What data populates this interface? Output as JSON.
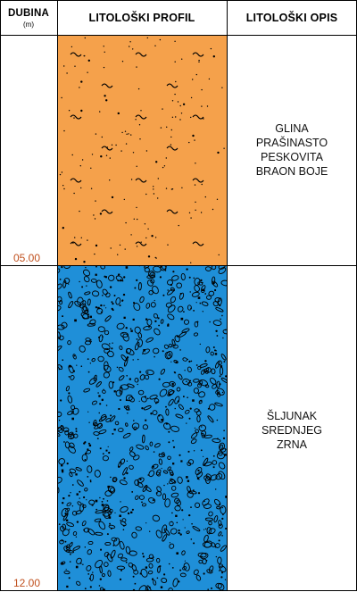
{
  "header": {
    "depth_title": "DUBINA",
    "depth_unit": "(m)",
    "profile_title": "LITOLOŠKI PROFIL",
    "description_title": "LITOLOŠKI OPIS"
  },
  "layers": [
    {
      "bottom_depth_label": "05.00",
      "description_lines": [
        "GLINA",
        "PRAŠINASTO",
        "PESKOVITA",
        "BRAON BOJE"
      ],
      "fill_color": "#f5a14b",
      "pattern": "silty-sandy-clay"
    },
    {
      "bottom_depth_label": "12.00",
      "description_lines": [
        "ŠLJUNAK",
        "SREDNJEG",
        "ZRNA"
      ],
      "fill_color": "#1f8fd8",
      "pattern": "medium-gravel"
    }
  ],
  "colors": {
    "depth_label": "#c0501e",
    "border": "#000000"
  }
}
